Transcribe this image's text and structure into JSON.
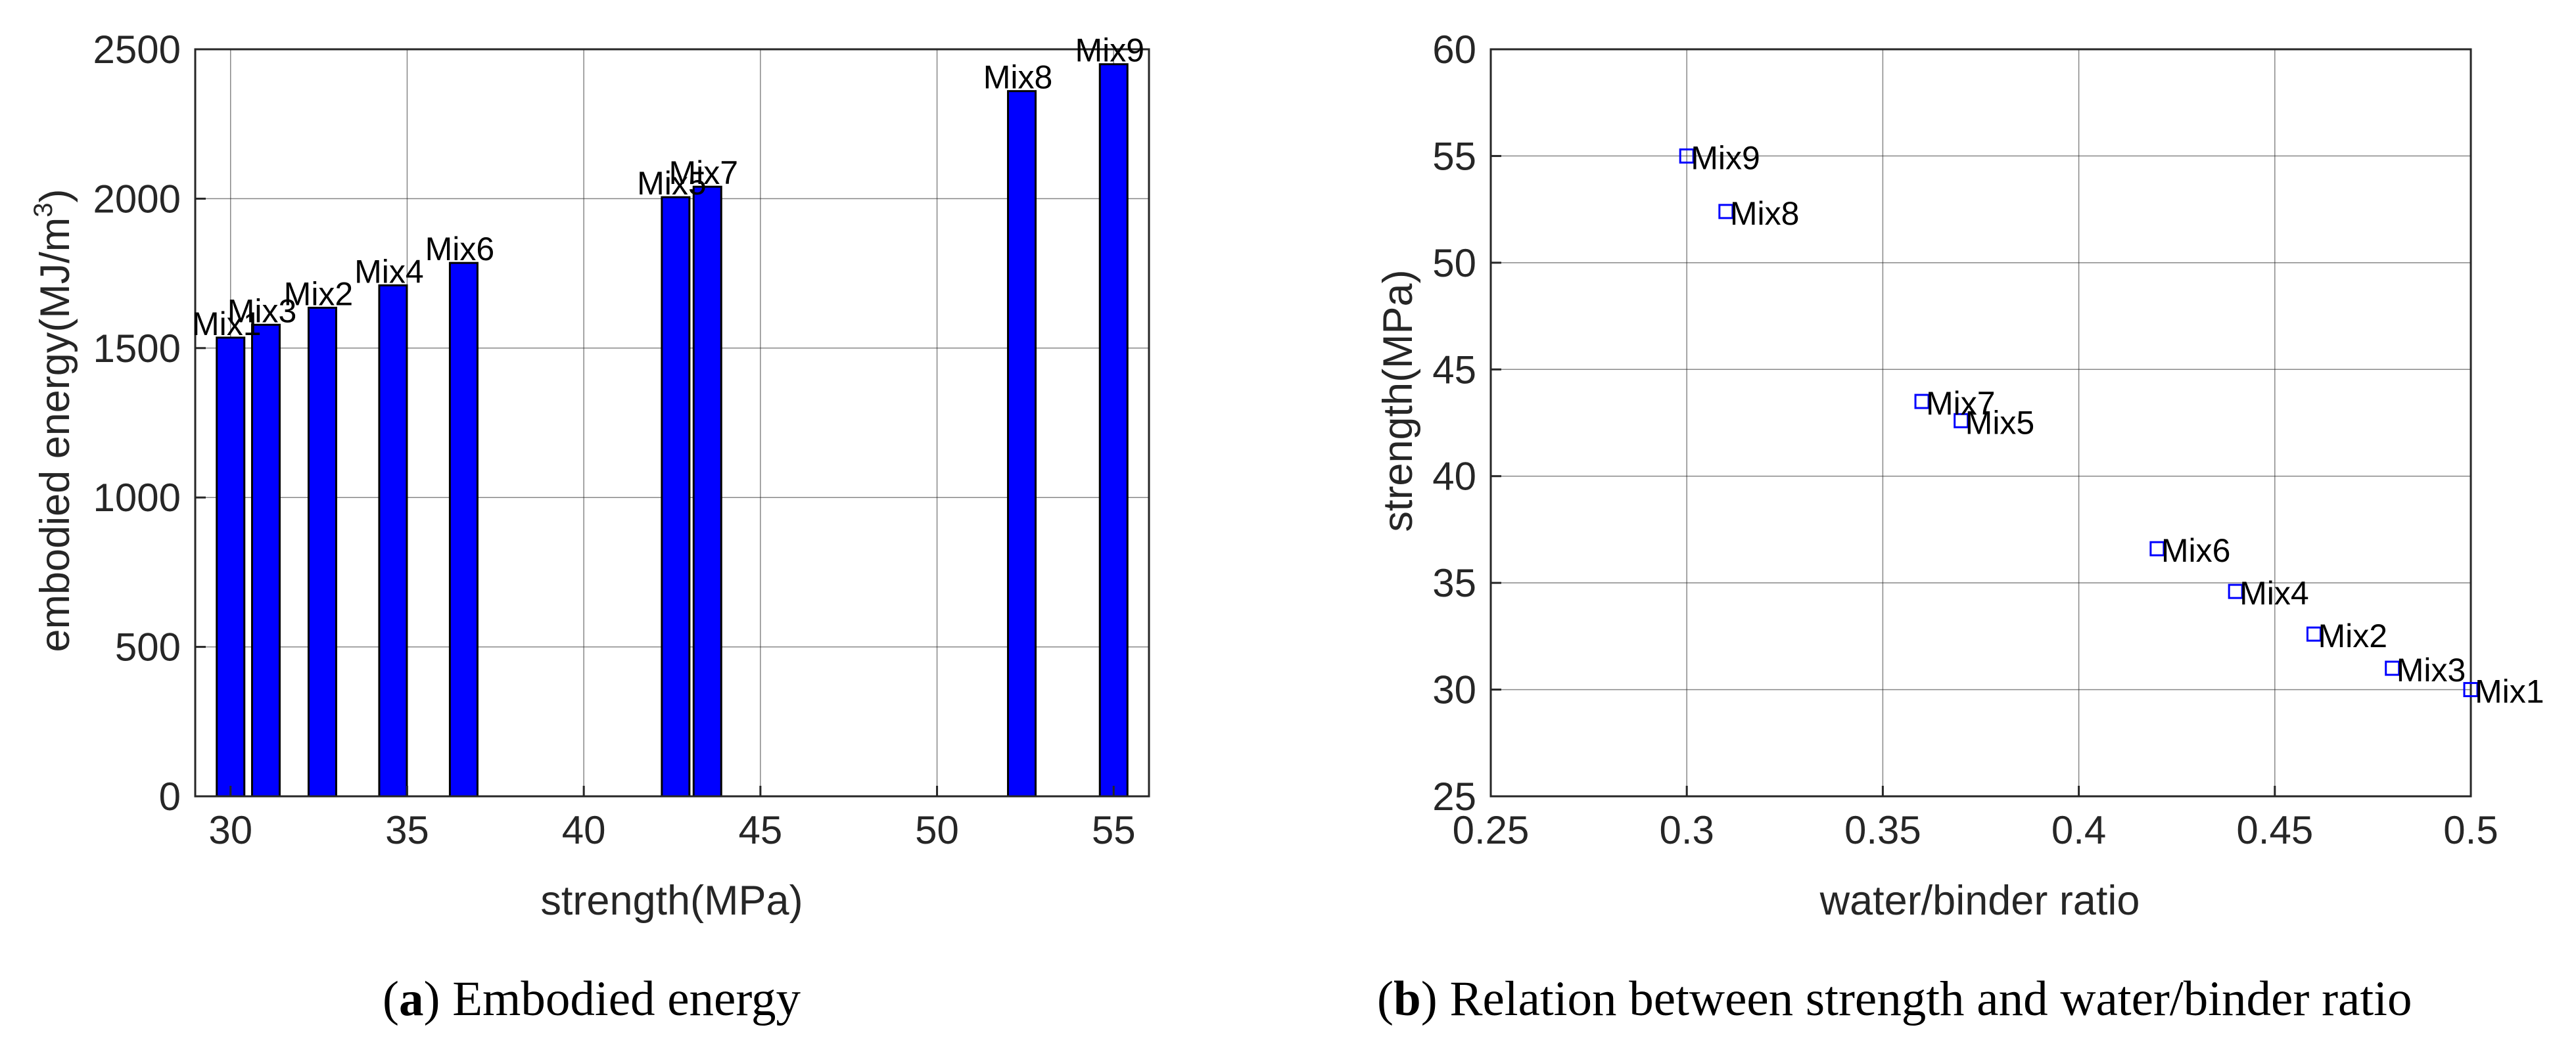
{
  "colors": {
    "bar": "#0000ff",
    "marker": "#0000ff",
    "grid": "#262626",
    "axis": "#262626",
    "text": "#262626"
  },
  "chart_data": [
    {
      "type": "bar",
      "title": "",
      "xlabel": "strength(MPa)",
      "ylabel_main": "embodied energy(MJ/m",
      "ylabel_sup": "3",
      "ylabel_end": ")",
      "xlim": [
        29,
        56
      ],
      "ylim": [
        0,
        2500
      ],
      "xticks": [
        30,
        35,
        40,
        45,
        50,
        55
      ],
      "xtick_labels": [
        "30",
        "35",
        "40",
        "45",
        "50",
        "55"
      ],
      "yticks": [
        0,
        500,
        1000,
        1500,
        2000,
        2500
      ],
      "ytick_labels": [
        "0",
        "500",
        "1000",
        "1500",
        "2000",
        "2500"
      ],
      "grid": true,
      "series": [
        {
          "name": "embodied energy",
          "points": [
            {
              "label": "Mix1",
              "x": 30.0,
              "y": 1535
            },
            {
              "label": "Mix3",
              "x": 31.0,
              "y": 1578
            },
            {
              "label": "Mix2",
              "x": 32.6,
              "y": 1635
            },
            {
              "label": "Mix4",
              "x": 34.6,
              "y": 1710
            },
            {
              "label": "Mix6",
              "x": 36.6,
              "y": 1785
            },
            {
              "label": "Mix5",
              "x": 42.6,
              "y": 2005
            },
            {
              "label": "Mix7",
              "x": 43.5,
              "y": 2040
            },
            {
              "label": "Mix8",
              "x": 52.4,
              "y": 2360
            },
            {
              "label": "Mix9",
              "x": 55.0,
              "y": 2450
            }
          ]
        }
      ]
    },
    {
      "type": "scatter",
      "title": "",
      "xlabel": "water/binder ratio",
      "ylabel": "strength(MPa)",
      "xlim": [
        0.25,
        0.5
      ],
      "ylim": [
        25,
        60
      ],
      "xticks": [
        0.25,
        0.3,
        0.35,
        0.4,
        0.45,
        0.5
      ],
      "xtick_labels": [
        "0.25",
        "0.3",
        "0.35",
        "0.4",
        "0.45",
        "0.5"
      ],
      "yticks": [
        25,
        30,
        35,
        40,
        45,
        50,
        55,
        60
      ],
      "ytick_labels": [
        "25",
        "30",
        "35",
        "40",
        "45",
        "50",
        "55",
        "60"
      ],
      "grid": true,
      "series": [
        {
          "name": "strength",
          "points": [
            {
              "label": "Mix9",
              "x": 0.3,
              "y": 55.0
            },
            {
              "label": "Mix8",
              "x": 0.31,
              "y": 52.4
            },
            {
              "label": "Mix7",
              "x": 0.36,
              "y": 43.5
            },
            {
              "label": "Mix5",
              "x": 0.37,
              "y": 42.6
            },
            {
              "label": "Mix6",
              "x": 0.42,
              "y": 36.6
            },
            {
              "label": "Mix4",
              "x": 0.44,
              "y": 34.6
            },
            {
              "label": "Mix2",
              "x": 0.46,
              "y": 32.6
            },
            {
              "label": "Mix3",
              "x": 0.48,
              "y": 31.0
            },
            {
              "label": "Mix1",
              "x": 0.5,
              "y": 30.0
            }
          ]
        }
      ]
    }
  ],
  "captions": {
    "a": {
      "tag": "a",
      "text": " Embodied energy"
    },
    "b": {
      "tag": "b",
      "text": " Relation between strength and water/binder ratio"
    }
  }
}
